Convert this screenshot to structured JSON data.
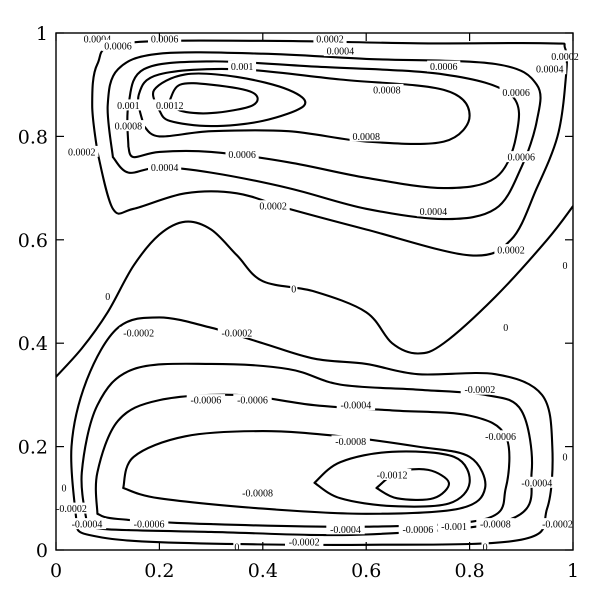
{
  "chart_data": {
    "type": "contour",
    "title": "",
    "xlabel": "",
    "ylabel": "",
    "xlim": [
      0,
      1
    ],
    "ylim": [
      0,
      1
    ],
    "x_ticks": [
      0,
      0.2,
      0.4,
      0.6,
      0.8,
      1
    ],
    "x_tick_labels": [
      "0",
      "0.2",
      "0.4",
      "0.6",
      "0.8",
      "1"
    ],
    "y_ticks": [
      0,
      0.2,
      0.4,
      0.6,
      0.8,
      1
    ],
    "y_tick_labels": [
      "0",
      "0.2",
      "0.4",
      "0.6",
      "0.8",
      "1"
    ],
    "grid": false,
    "contours": [
      {
        "level": "0",
        "points": [
          [
            0,
            0.335
          ],
          [
            0.05,
            0.39
          ],
          [
            0.1,
            0.46
          ],
          [
            0.15,
            0.55
          ],
          [
            0.2,
            0.61
          ],
          [
            0.25,
            0.635
          ],
          [
            0.3,
            0.62
          ],
          [
            0.35,
            0.57
          ],
          [
            0.4,
            0.52
          ],
          [
            0.5,
            0.5
          ],
          [
            0.6,
            0.46
          ],
          [
            0.65,
            0.4
          ],
          [
            0.7,
            0.38
          ],
          [
            0.75,
            0.4
          ],
          [
            0.85,
            0.49
          ],
          [
            0.95,
            0.6
          ],
          [
            1,
            0.665
          ]
        ]
      },
      {
        "level": "0.0002",
        "points": [
          [
            0.08,
            0.77
          ],
          [
            0.07,
            0.86
          ],
          [
            0.08,
            0.94
          ],
          [
            0.13,
            0.98
          ],
          [
            0.4,
            0.985
          ],
          [
            0.7,
            0.98
          ],
          [
            0.95,
            0.98
          ],
          [
            0.985,
            0.97
          ],
          [
            0.985,
            0.9
          ],
          [
            0.97,
            0.8
          ],
          [
            0.93,
            0.7
          ],
          [
            0.88,
            0.6
          ],
          [
            0.8,
            0.57
          ],
          [
            0.6,
            0.62
          ],
          [
            0.45,
            0.66
          ],
          [
            0.35,
            0.69
          ],
          [
            0.25,
            0.69
          ],
          [
            0.15,
            0.66
          ],
          [
            0.11,
            0.66
          ],
          [
            0.08,
            0.77
          ]
        ]
      },
      {
        "level": "0.0004",
        "points": [
          [
            0.11,
            0.76
          ],
          [
            0.1,
            0.86
          ],
          [
            0.12,
            0.93
          ],
          [
            0.2,
            0.96
          ],
          [
            0.4,
            0.96
          ],
          [
            0.6,
            0.95
          ],
          [
            0.85,
            0.94
          ],
          [
            0.93,
            0.9
          ],
          [
            0.93,
            0.83
          ],
          [
            0.9,
            0.74
          ],
          [
            0.85,
            0.66
          ],
          [
            0.75,
            0.64
          ],
          [
            0.6,
            0.66
          ],
          [
            0.45,
            0.7
          ],
          [
            0.3,
            0.73
          ],
          [
            0.2,
            0.74
          ],
          [
            0.14,
            0.73
          ],
          [
            0.11,
            0.76
          ]
        ]
      },
      {
        "level": "0.0006",
        "points": [
          [
            0.14,
            0.78
          ],
          [
            0.14,
            0.86
          ],
          [
            0.17,
            0.93
          ],
          [
            0.3,
            0.945
          ],
          [
            0.5,
            0.935
          ],
          [
            0.75,
            0.92
          ],
          [
            0.88,
            0.88
          ],
          [
            0.89,
            0.8
          ],
          [
            0.85,
            0.72
          ],
          [
            0.75,
            0.7
          ],
          [
            0.6,
            0.72
          ],
          [
            0.45,
            0.75
          ],
          [
            0.3,
            0.77
          ],
          [
            0.2,
            0.77
          ],
          [
            0.15,
            0.76
          ],
          [
            0.14,
            0.78
          ]
        ]
      },
      {
        "level": "0.0008",
        "points": [
          [
            0.17,
            0.82
          ],
          [
            0.16,
            0.88
          ],
          [
            0.2,
            0.92
          ],
          [
            0.35,
            0.93
          ],
          [
            0.55,
            0.91
          ],
          [
            0.75,
            0.89
          ],
          [
            0.8,
            0.84
          ],
          [
            0.75,
            0.79
          ],
          [
            0.6,
            0.79
          ],
          [
            0.45,
            0.81
          ],
          [
            0.3,
            0.81
          ],
          [
            0.2,
            0.8
          ],
          [
            0.17,
            0.82
          ]
        ]
      },
      {
        "level": "0.001",
        "points": [
          [
            0.2,
            0.85
          ],
          [
            0.19,
            0.89
          ],
          [
            0.25,
            0.92
          ],
          [
            0.35,
            0.915
          ],
          [
            0.45,
            0.89
          ],
          [
            0.48,
            0.86
          ],
          [
            0.4,
            0.83
          ],
          [
            0.3,
            0.82
          ],
          [
            0.22,
            0.83
          ],
          [
            0.2,
            0.85
          ]
        ]
      },
      {
        "level": "0.0012",
        "points": [
          [
            0.22,
            0.87
          ],
          [
            0.24,
            0.9
          ],
          [
            0.3,
            0.9
          ],
          [
            0.38,
            0.885
          ],
          [
            0.38,
            0.86
          ],
          [
            0.3,
            0.845
          ],
          [
            0.24,
            0.85
          ],
          [
            0.22,
            0.87
          ]
        ]
      },
      {
        "level": "-0.0002",
        "points": [
          [
            0.04,
            0.05
          ],
          [
            0.03,
            0.2
          ],
          [
            0.06,
            0.33
          ],
          [
            0.12,
            0.43
          ],
          [
            0.2,
            0.45
          ],
          [
            0.3,
            0.43
          ],
          [
            0.4,
            0.4
          ],
          [
            0.5,
            0.37
          ],
          [
            0.6,
            0.36
          ],
          [
            0.7,
            0.34
          ],
          [
            0.85,
            0.34
          ],
          [
            0.94,
            0.3
          ],
          [
            0.96,
            0.2
          ],
          [
            0.95,
            0.08
          ],
          [
            0.9,
            0.02
          ],
          [
            0.6,
            0.01
          ],
          [
            0.2,
            0.015
          ],
          [
            0.06,
            0.03
          ],
          [
            0.04,
            0.05
          ]
        ]
      },
      {
        "level": "-0.0004",
        "points": [
          [
            0.06,
            0.05
          ],
          [
            0.05,
            0.15
          ],
          [
            0.08,
            0.28
          ],
          [
            0.15,
            0.35
          ],
          [
            0.3,
            0.36
          ],
          [
            0.45,
            0.35
          ],
          [
            0.55,
            0.32
          ],
          [
            0.7,
            0.31
          ],
          [
            0.83,
            0.3
          ],
          [
            0.9,
            0.27
          ],
          [
            0.92,
            0.15
          ],
          [
            0.88,
            0.06
          ],
          [
            0.6,
            0.03
          ],
          [
            0.3,
            0.035
          ],
          [
            0.1,
            0.04
          ],
          [
            0.06,
            0.05
          ]
        ]
      },
      {
        "level": "-0.0006",
        "points": [
          [
            0.08,
            0.07
          ],
          [
            0.08,
            0.15
          ],
          [
            0.12,
            0.25
          ],
          [
            0.2,
            0.29
          ],
          [
            0.35,
            0.3
          ],
          [
            0.5,
            0.28
          ],
          [
            0.65,
            0.27
          ],
          [
            0.8,
            0.26
          ],
          [
            0.87,
            0.22
          ],
          [
            0.87,
            0.12
          ],
          [
            0.83,
            0.06
          ],
          [
            0.6,
            0.045
          ],
          [
            0.3,
            0.05
          ],
          [
            0.12,
            0.06
          ],
          [
            0.08,
            0.07
          ]
        ]
      },
      {
        "level": "-0.0008",
        "points": [
          [
            0.13,
            0.12
          ],
          [
            0.15,
            0.18
          ],
          [
            0.25,
            0.22
          ],
          [
            0.4,
            0.23
          ],
          [
            0.55,
            0.22
          ],
          [
            0.7,
            0.2
          ],
          [
            0.8,
            0.18
          ],
          [
            0.83,
            0.12
          ],
          [
            0.78,
            0.08
          ],
          [
            0.6,
            0.07
          ],
          [
            0.4,
            0.08
          ],
          [
            0.2,
            0.1
          ],
          [
            0.13,
            0.12
          ]
        ]
      },
      {
        "level": "-0.001",
        "points": [
          [
            0.5,
            0.13
          ],
          [
            0.55,
            0.17
          ],
          [
            0.65,
            0.19
          ],
          [
            0.77,
            0.18
          ],
          [
            0.8,
            0.13
          ],
          [
            0.76,
            0.09
          ],
          [
            0.65,
            0.085
          ],
          [
            0.55,
            0.1
          ],
          [
            0.5,
            0.13
          ]
        ]
      },
      {
        "level": "-0.0012",
        "points": [
          [
            0.62,
            0.12
          ],
          [
            0.66,
            0.15
          ],
          [
            0.72,
            0.155
          ],
          [
            0.76,
            0.13
          ],
          [
            0.73,
            0.1
          ],
          [
            0.66,
            0.1
          ],
          [
            0.62,
            0.12
          ]
        ]
      }
    ],
    "contour_labels": [
      {
        "text": "0.0002",
        "x": 0.53,
        "y": 0.995
      },
      {
        "text": "0.0004",
        "x": 0.55,
        "y": 0.965
      },
      {
        "text": "0.0006",
        "x": 0.75,
        "y": 0.935
      },
      {
        "text": "0.0008",
        "x": 0.64,
        "y": 0.89
      },
      {
        "text": "0.0008",
        "x": 0.6,
        "y": 0.8
      },
      {
        "text": "0.001",
        "x": 0.36,
        "y": 0.935
      },
      {
        "text": "0.0012",
        "x": 0.22,
        "y": 0.86
      },
      {
        "text": "0.001",
        "x": 0.14,
        "y": 0.86
      },
      {
        "text": "0.0008",
        "x": 0.14,
        "y": 0.82
      },
      {
        "text": "0.0004",
        "x": 0.08,
        "y": 0.995
      },
      {
        "text": "0.0006",
        "x": 0.21,
        "y": 0.995
      },
      {
        "text": "0.0006",
        "x": 0.12,
        "y": 0.975
      },
      {
        "text": "0.0002",
        "x": 0.985,
        "y": 0.955
      },
      {
        "text": "0.0004",
        "x": 0.955,
        "y": 0.93
      },
      {
        "text": "0.0006",
        "x": 0.89,
        "y": 0.885
      },
      {
        "text": "0.0002",
        "x": 0.05,
        "y": 0.77
      },
      {
        "text": "0.0006",
        "x": 0.36,
        "y": 0.765
      },
      {
        "text": "0.0004",
        "x": 0.21,
        "y": 0.74
      },
      {
        "text": "0.0004",
        "x": 0.73,
        "y": 0.655
      },
      {
        "text": "0.0006",
        "x": 0.9,
        "y": 0.76
      },
      {
        "text": "0.0002",
        "x": 0.42,
        "y": 0.665
      },
      {
        "text": "0.0002",
        "x": 0.88,
        "y": 0.58
      },
      {
        "text": "0",
        "x": 0.1,
        "y": 0.49
      },
      {
        "text": "0",
        "x": 0.46,
        "y": 0.505
      },
      {
        "text": "0",
        "x": 0.87,
        "y": 0.43
      },
      {
        "text": "0",
        "x": 0.985,
        "y": 0.55
      },
      {
        "text": "-0.0002",
        "x": 0.16,
        "y": 0.42
      },
      {
        "text": "-0.0002",
        "x": 0.35,
        "y": 0.42
      },
      {
        "text": "-0.0002",
        "x": 0.82,
        "y": 0.31
      },
      {
        "text": "-0.0006",
        "x": 0.29,
        "y": 0.29
      },
      {
        "text": "-0.0006",
        "x": 0.38,
        "y": 0.29
      },
      {
        "text": "-0.0004",
        "x": 0.58,
        "y": 0.28
      },
      {
        "text": "-0.0006",
        "x": 0.86,
        "y": 0.22
      },
      {
        "text": "-0.0008",
        "x": 0.57,
        "y": 0.21
      },
      {
        "text": "-0.0008",
        "x": 0.39,
        "y": 0.11
      },
      {
        "text": "-0.0012",
        "x": 0.65,
        "y": 0.145
      },
      {
        "text": "-0.0004",
        "x": 0.93,
        "y": 0.13
      },
      {
        "text": "-0.0006",
        "x": 0.18,
        "y": 0.05
      },
      {
        "text": "-0.0004",
        "x": 0.56,
        "y": 0.04
      },
      {
        "text": "-0.0006",
        "x": 0.7,
        "y": 0.04
      },
      {
        "text": "-0.001",
        "x": 0.77,
        "y": 0.045
      },
      {
        "text": "-0.0008",
        "x": 0.85,
        "y": 0.05
      },
      {
        "text": "-0.0002",
        "x": 0.48,
        "y": 0.015
      },
      {
        "text": "-0.0002",
        "x": 0.03,
        "y": 0.08
      },
      {
        "text": "-0.0002",
        "x": 0.97,
        "y": 0.05
      },
      {
        "text": "0",
        "x": 0.35,
        "y": 0.0
      },
      {
        "text": "0",
        "x": 0.83,
        "y": 0.0
      },
      {
        "text": "0",
        "x": 0.99,
        "y": 0.18
      },
      {
        "text": "-0.0004",
        "x": 0.06,
        "y": 0.05
      },
      {
        "text": "0",
        "x": 0.0,
        "y": 0.12
      }
    ]
  }
}
